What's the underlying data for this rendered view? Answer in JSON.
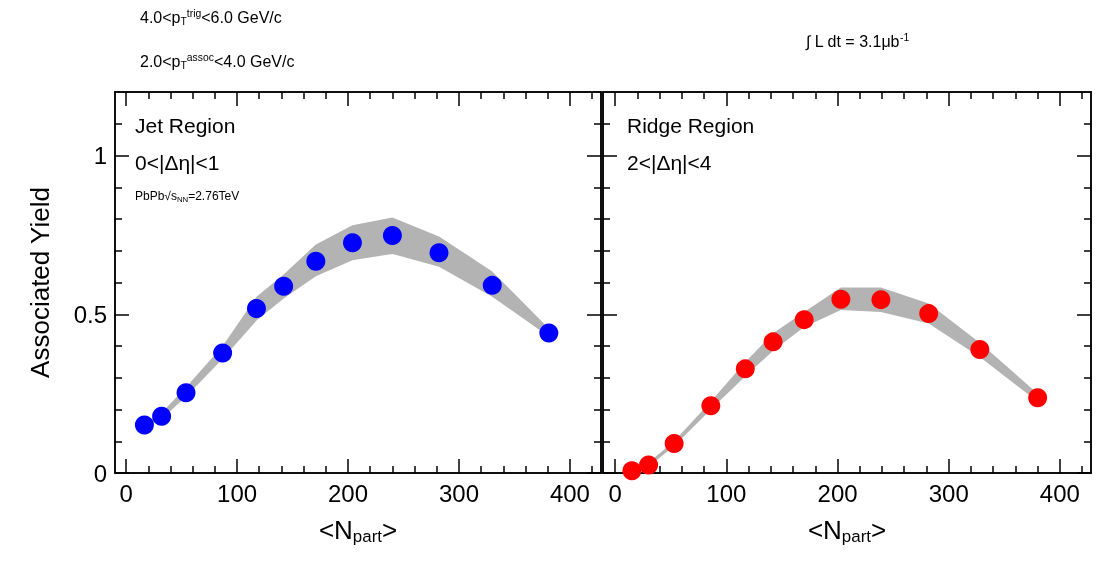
{
  "chart_data": [
    {
      "type": "scatter",
      "xlabel": "<N$_{part}$>",
      "ylabel": "Associated Yield",
      "marker": "circle",
      "annotations": [
        "4.0<p$_{T}$$^{trig}$<6.0 GeV/c",
        "2.0<p$_{T}$$^{assoc}$<4.0 GeV/c",
        "Jet Region",
        "0<|Δη|<1",
        "PbPb√s$_{NN}$=2.76TeV"
      ],
      "xlim": [
        -10,
        428
      ],
      "ylim": [
        0,
        1.2
      ],
      "xticks": [
        0,
        {
          "value": 20,
          "label": null
        },
        {
          "value": 40,
          "label": null
        },
        {
          "value": 60,
          "label": null
        },
        {
          "value": 80,
          "label": null
        },
        100,
        {
          "value": 120,
          "label": null
        },
        {
          "value": 140,
          "label": null
        },
        {
          "value": 160,
          "label": null
        },
        {
          "value": 180,
          "label": null
        },
        200,
        {
          "value": 220,
          "label": null
        },
        {
          "value": 240,
          "label": null
        },
        {
          "value": 260,
          "label": null
        },
        {
          "value": 280,
          "label": null
        },
        300,
        {
          "value": 320,
          "label": null
        },
        {
          "value": 340,
          "label": null
        },
        {
          "value": 360,
          "label": null
        },
        {
          "value": 380,
          "label": null
        },
        400,
        {
          "value": 420,
          "label": null
        }
      ],
      "yticks": [
        0,
        {
          "value": 0.1,
          "label": null
        },
        {
          "value": 0.2,
          "label": null
        },
        {
          "value": 0.3,
          "label": null
        },
        {
          "value": 0.4,
          "label": null
        },
        0.5,
        {
          "value": 0.6,
          "label": null
        },
        {
          "value": 0.7,
          "label": null
        },
        {
          "value": 0.8,
          "label": null
        },
        {
          "value": 0.9,
          "label": null
        },
        1,
        {
          "value": 1.1,
          "label": null
        }
      ],
      "series": [
        {
          "color": "#0000ff",
          "x": [
            16.5,
            32,
            54,
            87,
            117.5,
            142,
            171,
            204,
            240,
            282,
            330,
            381
          ],
          "values": [
            0.151,
            0.179,
            0.253,
            0.378,
            0.518,
            0.588,
            0.667,
            0.725,
            0.748,
            0.694,
            0.591,
            0.441
          ],
          "lower": [
            0.145,
            0.17,
            0.24,
            0.36,
            0.48,
            0.55,
            0.62,
            0.67,
            0.69,
            0.65,
            0.555,
            0.43
          ],
          "upper": [
            0.157,
            0.19,
            0.27,
            0.4,
            0.555,
            0.625,
            0.72,
            0.78,
            0.805,
            0.745,
            0.635,
            0.455
          ]
        }
      ]
    },
    {
      "type": "scatter",
      "xlabel": "<N$_{part}$>",
      "marker": "circle",
      "tick_labels": "x",
      "annotations": [
        "∫ L dt = 3.1μb$^{-1}$",
        "Ridge Region",
        "2<|Δη|<4"
      ],
      "xlim": [
        -11,
        428
      ],
      "ylim": [
        0,
        1.2
      ],
      "xticks": [
        0,
        {
          "value": 20,
          "label": null
        },
        {
          "value": 40,
          "label": null
        },
        {
          "value": 60,
          "label": null
        },
        {
          "value": 80,
          "label": null
        },
        100,
        {
          "value": 120,
          "label": null
        },
        {
          "value": 140,
          "label": null
        },
        {
          "value": 160,
          "label": null
        },
        {
          "value": 180,
          "label": null
        },
        200,
        {
          "value": 220,
          "label": null
        },
        {
          "value": 240,
          "label": null
        },
        {
          "value": 260,
          "label": null
        },
        {
          "value": 280,
          "label": null
        },
        300,
        {
          "value": 320,
          "label": null
        },
        {
          "value": 340,
          "label": null
        },
        {
          "value": 360,
          "label": null
        },
        {
          "value": 380,
          "label": null
        },
        400,
        {
          "value": 420,
          "label": null
        }
      ],
      "yticks": [
        0,
        {
          "value": 0.1,
          "label": null
        },
        {
          "value": 0.2,
          "label": null
        },
        {
          "value": 0.3,
          "label": null
        },
        {
          "value": 0.4,
          "label": null
        },
        0.5,
        {
          "value": 0.6,
          "label": null
        },
        {
          "value": 0.7,
          "label": null
        },
        {
          "value": 0.8,
          "label": null
        },
        {
          "value": 0.9,
          "label": null
        },
        1,
        {
          "value": 1.1,
          "label": null
        }
      ],
      "series": [
        {
          "color": "#ff0000",
          "x": [
            15,
            30,
            53,
            86,
            117,
            142,
            170,
            203,
            239,
            282,
            328,
            380
          ],
          "values": [
            0.007,
            0.025,
            0.093,
            0.212,
            0.328,
            0.413,
            0.483,
            0.547,
            0.546,
            0.502,
            0.389,
            0.237
          ],
          "lower": [
            0.0,
            0.02,
            0.085,
            0.2,
            0.305,
            0.385,
            0.46,
            0.513,
            0.507,
            0.471,
            0.365,
            0.225
          ],
          "upper": [
            0.012,
            0.033,
            0.1,
            0.225,
            0.35,
            0.44,
            0.507,
            0.584,
            0.584,
            0.534,
            0.41,
            0.25
          ]
        }
      ]
    }
  ]
}
